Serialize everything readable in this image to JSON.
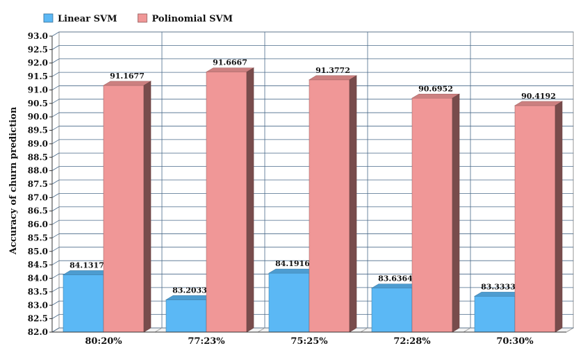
{
  "chart_data": {
    "type": "bar",
    "title": "",
    "xlabel": "",
    "ylabel": "Accuracy of churn prediction",
    "categories": [
      "80:20%",
      "77:23%",
      "75:25%",
      "72:28%",
      "70:30%"
    ],
    "series": [
      {
        "name": "Linear SVM",
        "color": "#5bb8f5",
        "values": [
          84.1317,
          83.2033,
          84.1916,
          83.6364,
          83.3333
        ],
        "labels": [
          "84.1317",
          "83.2033",
          "84.1916",
          "83.6364",
          "83.3333"
        ]
      },
      {
        "name": "Polinomial SVM",
        "color": "#f09797",
        "values": [
          91.1677,
          91.6667,
          91.3772,
          90.6952,
          90.4192
        ],
        "labels": [
          "91.1677",
          "91.6667",
          "91.3772",
          "90.6952",
          "90.4192"
        ]
      }
    ],
    "ylim": [
      82.0,
      93.0
    ],
    "ytick_step": 0.5,
    "ytick_labels": [
      "82.0",
      "82.5",
      "83.0",
      "83.5",
      "84.0",
      "84.5",
      "85.0",
      "85.5",
      "86.0",
      "86.5",
      "87.0",
      "87.5",
      "88.0",
      "88.5",
      "89.0",
      "89.5",
      "90.0",
      "90.5",
      "91.0",
      "91.5",
      "92.0",
      "92.5",
      "93.0"
    ],
    "grid": true,
    "legend_position": "top-left",
    "bar_style": "3d"
  }
}
